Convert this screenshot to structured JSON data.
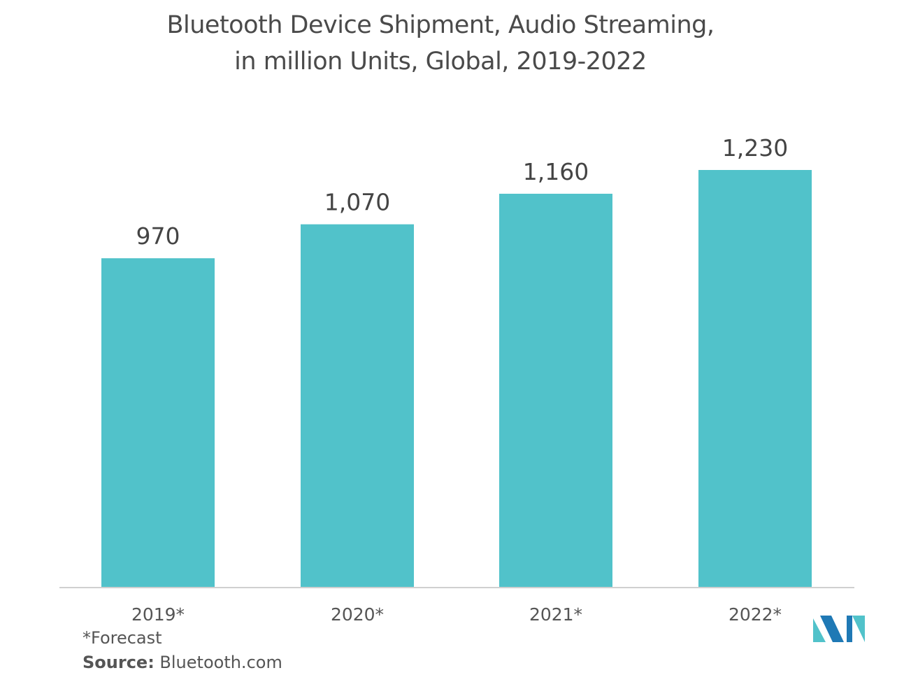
{
  "header": {
    "title_line1": "Bluetooth Device Shipment, Audio Streaming,",
    "title_line2": "in million Units, Global, 2019-2022"
  },
  "chart_data": {
    "type": "bar",
    "title": "Bluetooth Device Shipment, Audio Streaming, in million Units, Global, 2019-2022",
    "categories": [
      "2019*",
      "2020*",
      "2021*",
      "2022*"
    ],
    "values": [
      970,
      1070,
      1160,
      1230
    ],
    "value_labels": [
      "970",
      "1,070",
      "1,160",
      "1,230"
    ],
    "xlabel": "",
    "ylabel": "",
    "ylim": [
      0,
      1230
    ],
    "grid": false,
    "legend": "none",
    "bar_color": "#51C2CA"
  },
  "footer": {
    "footnote": "*Forecast",
    "source_label": "Source:",
    "source_value": " Bluetooth.com"
  },
  "logo": {
    "icon": "mordor-intelligence-logo-icon",
    "colors": [
      "#51C2CA",
      "#1F79B5"
    ]
  }
}
